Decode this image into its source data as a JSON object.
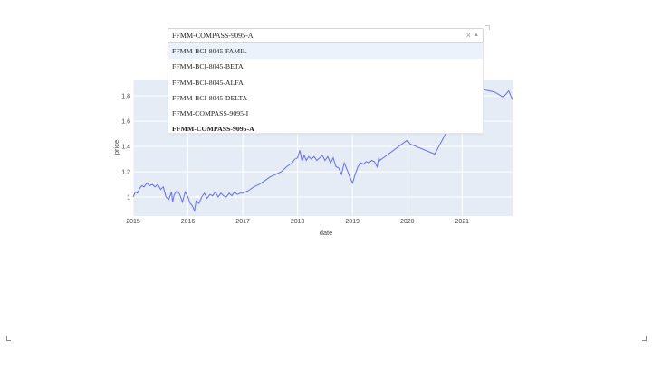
{
  "dropdown": {
    "value": "FFMM-COMPASS-9095-A",
    "clear_icon": "×",
    "arrow_icon": "▲",
    "options": [
      "FFMM-BCI-8045-FAMIL",
      "FFMM-BCI-8045-BETA",
      "FFMM-BCI-8045-ALFA",
      "FFMM-BCI-8045-DELTA",
      "FFMM-COMPASS-9095-I",
      "FFMM-COMPASS-9095-A"
    ],
    "focused_index": 0,
    "selected_index": 5
  },
  "colors": {
    "line": "#636efa",
    "plot_bg": "#e5ecf6",
    "grid": "#ffffff"
  },
  "chart_data": {
    "type": "line",
    "xlabel": "date",
    "ylabel": "price",
    "x_ticks": [
      "2015",
      "2016",
      "2017",
      "2018",
      "2019",
      "2020",
      "2021"
    ],
    "y_ticks": [
      "1",
      "1.2",
      "1.4",
      "1.6",
      "1.8"
    ],
    "xlim": [
      2015.0,
      2021.92
    ],
    "ylim": [
      0.85,
      1.93
    ],
    "series": [
      {
        "x": [
          2015.0,
          2015.04,
          2015.08,
          2015.12,
          2015.16,
          2015.2,
          2015.25,
          2015.3,
          2015.35,
          2015.4,
          2015.45,
          2015.5,
          2015.55,
          2015.6,
          2015.65,
          2015.7,
          2015.72,
          2015.75,
          2015.8,
          2015.85,
          2015.9,
          2015.95,
          2016.0,
          2016.04,
          2016.08,
          2016.12,
          2016.15,
          2016.2,
          2016.25,
          2016.3,
          2016.35,
          2016.4,
          2016.45,
          2016.5,
          2016.55,
          2016.6,
          2016.65,
          2016.7,
          2016.75,
          2016.8,
          2016.85,
          2016.9,
          2016.95,
          2017.0,
          2017.1,
          2017.2,
          2017.3,
          2017.4,
          2017.5,
          2017.6,
          2017.7,
          2017.8,
          2017.9,
          2017.95,
          2018.0,
          2018.04,
          2018.06,
          2018.08,
          2018.12,
          2018.16,
          2018.2,
          2018.25,
          2018.3,
          2018.35,
          2018.4,
          2018.45,
          2018.5,
          2018.55,
          2018.6,
          2018.65,
          2018.7,
          2018.75,
          2018.8,
          2018.85,
          2018.9,
          2018.95,
          2019.0,
          2019.05,
          2019.1,
          2019.15,
          2019.2,
          2019.25,
          2019.3,
          2019.35,
          2019.4,
          2019.45,
          2019.48,
          2019.5,
          2020.0,
          2020.05,
          2020.5,
          2020.7,
          2020.75,
          2020.85,
          2021.0,
          2021.2,
          2021.3,
          2021.4,
          2021.5,
          2021.6,
          2021.75,
          2021.85,
          2021.92
        ],
        "y": [
          1.0,
          1.04,
          1.03,
          1.07,
          1.09,
          1.08,
          1.11,
          1.09,
          1.1,
          1.08,
          1.1,
          1.06,
          1.08,
          1.0,
          0.98,
          1.04,
          0.96,
          1.02,
          1.05,
          1.02,
          0.96,
          1.04,
          1.0,
          0.95,
          0.93,
          0.89,
          0.97,
          0.95,
          1.0,
          1.03,
          0.99,
          1.02,
          1.01,
          1.04,
          1.0,
          1.03,
          1.01,
          1.0,
          1.03,
          1.01,
          1.04,
          1.02,
          1.03,
          1.03,
          1.05,
          1.08,
          1.1,
          1.13,
          1.16,
          1.18,
          1.2,
          1.24,
          1.27,
          1.3,
          1.31,
          1.37,
          1.33,
          1.28,
          1.33,
          1.29,
          1.32,
          1.3,
          1.32,
          1.29,
          1.31,
          1.33,
          1.29,
          1.32,
          1.27,
          1.31,
          1.24,
          1.23,
          1.18,
          1.27,
          1.22,
          1.16,
          1.11,
          1.18,
          1.24,
          1.27,
          1.26,
          1.28,
          1.27,
          1.29,
          1.28,
          1.24,
          1.31,
          1.29,
          1.45,
          1.42,
          1.34,
          1.5,
          1.56,
          1.62,
          1.7,
          1.74,
          1.8,
          1.85,
          1.84,
          1.83,
          1.79,
          1.84,
          1.77
        ]
      }
    ]
  }
}
